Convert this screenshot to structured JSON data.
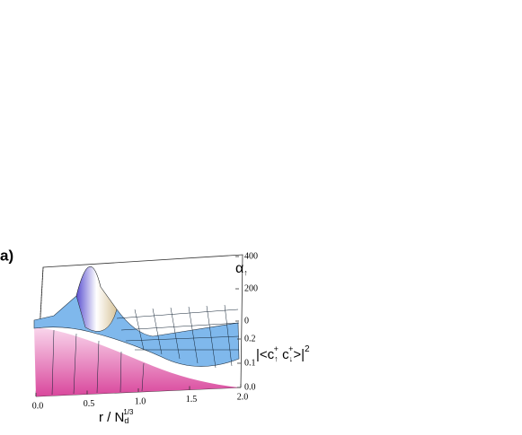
{
  "chart_data": {
    "type": "surface",
    "panel_label": "a)",
    "x_label": {
      "base": "r / N",
      "sub": "d",
      "sup": "1/3"
    },
    "z_label": {
      "base": "α",
      "sub": "↑"
    },
    "z2_label": {
      "open": "|<c",
      "sub1": "↑",
      "sup1": "+",
      "mid": " c",
      "sub2": "↓",
      "sup2": "+",
      "close": ">|",
      "sup3": "2"
    },
    "xlim": [
      0,
      2
    ],
    "xticks": [
      {
        "value": 0,
        "label": "0.0"
      },
      {
        "value": 0.5,
        "label": "0.5"
      },
      {
        "value": 1,
        "label": "1.0"
      },
      {
        "value": 1.5,
        "label": "1.5"
      },
      {
        "value": 2,
        "label": "2.0"
      }
    ],
    "zlim": [
      0,
      400
    ],
    "zticks": [
      0,
      200,
      400
    ],
    "z2lim": [
      0,
      0.2
    ],
    "z2ticks": [
      {
        "value": 0,
        "label": "0.0"
      },
      0.1,
      0.2
    ]
  }
}
